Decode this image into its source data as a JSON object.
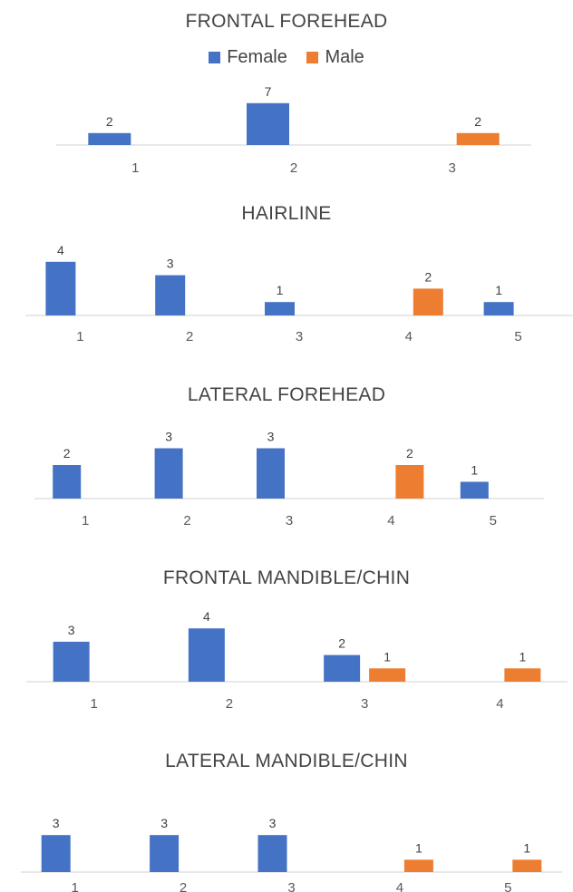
{
  "colors": {
    "female": "#4472c4",
    "male": "#ed7d31",
    "axis": "#d9d9d9"
  },
  "legend": {
    "female_label": "Female",
    "male_label": "Male"
  },
  "chart_data": [
    {
      "type": "bar",
      "title": "FRONTAL FOREHEAD",
      "categories": [
        "1",
        "2",
        "3"
      ],
      "series": [
        {
          "name": "Female",
          "values": [
            2,
            7,
            null
          ]
        },
        {
          "name": "Male",
          "values": [
            null,
            null,
            2
          ]
        }
      ]
    },
    {
      "type": "bar",
      "title": "HAIRLINE",
      "categories": [
        "1",
        "2",
        "3",
        "4",
        "5"
      ],
      "series": [
        {
          "name": "Female",
          "values": [
            4,
            3,
            1,
            null,
            1
          ]
        },
        {
          "name": "Male",
          "values": [
            null,
            null,
            null,
            2,
            null
          ]
        }
      ]
    },
    {
      "type": "bar",
      "title": "LATERAL FOREHEAD",
      "categories": [
        "1",
        "2",
        "3",
        "4",
        "5"
      ],
      "series": [
        {
          "name": "Female",
          "values": [
            2,
            3,
            3,
            null,
            1
          ]
        },
        {
          "name": "Male",
          "values": [
            null,
            null,
            null,
            2,
            null
          ]
        }
      ]
    },
    {
      "type": "bar",
      "title": "FRONTAL MANDIBLE/CHIN",
      "categories": [
        "1",
        "2",
        "3",
        "4"
      ],
      "series": [
        {
          "name": "Female",
          "values": [
            3,
            4,
            2,
            null
          ]
        },
        {
          "name": "Male",
          "values": [
            null,
            null,
            1,
            1
          ]
        }
      ]
    },
    {
      "type": "bar",
      "title": "LATERAL MANDIBLE/CHIN",
      "categories": [
        "1",
        "2",
        "3",
        "4",
        "5"
      ],
      "series": [
        {
          "name": "Female",
          "values": [
            3,
            3,
            3,
            null,
            null
          ]
        },
        {
          "name": "Male",
          "values": [
            null,
            null,
            null,
            1,
            1
          ]
        }
      ]
    }
  ]
}
